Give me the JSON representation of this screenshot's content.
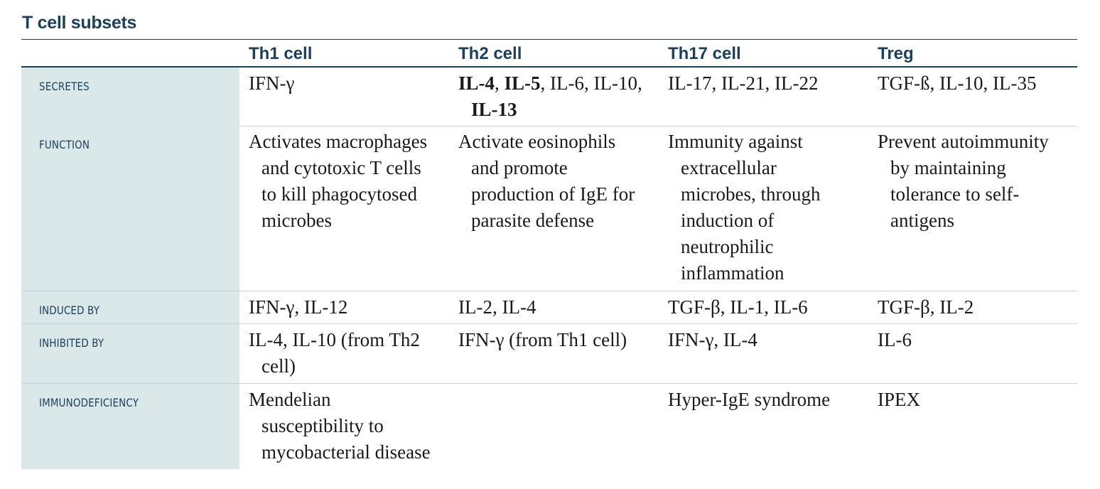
{
  "title": "T cell subsets",
  "columns": [
    "Th1 cell",
    "Th2 cell",
    "Th17 cell",
    "Treg"
  ],
  "rows": [
    {
      "label": "SECRETES",
      "cells": [
        [
          "IFN-γ"
        ],
        [
          "IL-4, IL-5, IL-6, IL-10,",
          "IL-13"
        ],
        [
          "IL-17, IL-21, IL-22"
        ],
        [
          "TGF-ß, IL-10, IL-35"
        ]
      ],
      "bold_terms": [
        "IL-4",
        "IL-5",
        "IL-13"
      ]
    },
    {
      "label": "FUNCTION",
      "cells": [
        [
          "Activates macrophages",
          "and cytotoxic T cells",
          "to kill phagocytosed",
          "microbes"
        ],
        [
          "Activate eosinophils",
          "and promote",
          "production of IgE for",
          "parasite defense"
        ],
        [
          "Immunity against",
          "extracellular",
          "microbes, through",
          "induction of",
          "neutrophilic",
          "inflammation"
        ],
        [
          "Prevent autoimmunity",
          "by maintaining",
          "tolerance to self-",
          "antigens"
        ]
      ]
    },
    {
      "label": "INDUCED BY",
      "cells": [
        [
          "IFN-γ, IL-12"
        ],
        [
          "IL-2, IL-4"
        ],
        [
          "TGF-β, IL-1, IL-6"
        ],
        [
          "TGF-β, IL-2"
        ]
      ]
    },
    {
      "label": "INHIBITED BY",
      "cells": [
        [
          "IL-4, IL-10 (from Th2",
          "cell)"
        ],
        [
          "IFN-γ (from Th1 cell)"
        ],
        [
          "IFN-γ, IL-4"
        ],
        [
          "IL-6"
        ]
      ]
    },
    {
      "label": "IMMUNODEFICIENCY",
      "cells": [
        [
          "Mendelian",
          "susceptibility to",
          "mycobacterial disease"
        ],
        [],
        [
          "Hyper-IgE syndrome"
        ],
        [
          "IPEX"
        ]
      ]
    }
  ],
  "colors": {
    "heading": "#1c3f5a",
    "label_column_bg": "#dbe8ea",
    "row_separator": "#c4d3d9",
    "body_text": "#1a1a1a"
  }
}
